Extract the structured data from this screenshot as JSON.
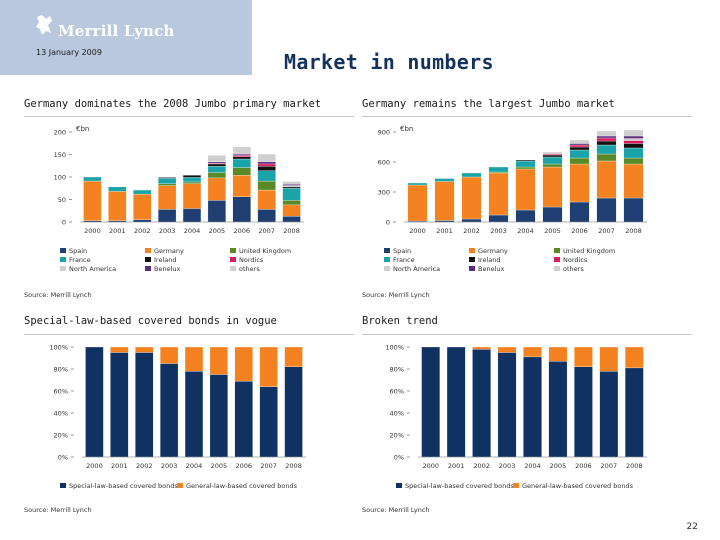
{
  "header": {
    "brand": "Merrill Lynch",
    "date": "13 January 2009",
    "title": "Market in numbers"
  },
  "page_number": "22",
  "colors": {
    "Spain": "#1f3f73",
    "France": "#1aa3a8",
    "North America": "#cfcfcf",
    "Germany": "#f58220",
    "Ireland": "#111111",
    "Benelux": "#5a2d81",
    "United Kingdom": "#5a8a28",
    "Nordics": "#d71b5b",
    "others": "#cfcfcf",
    "Special-law-based covered bonds": "#0f3263",
    "General-law-based covered bonds": "#f58220"
  },
  "panels": [
    {
      "title": "Germany dominates the 2008 Jumbo primary market",
      "source": "Source: Merrill Lynch",
      "unit": "€bn",
      "legend": [
        "Spain",
        "Germany",
        "United Kingdom",
        "France",
        "Ireland",
        "Nordics",
        "North America",
        "Benelux",
        "others"
      ]
    },
    {
      "title": "Germany remains the largest Jumbo market",
      "source": "Source: Merrill Lynch",
      "unit": "€bn",
      "legend": [
        "Spain",
        "Germany",
        "United Kingdom",
        "France",
        "Ireland",
        "Nordics",
        "North America",
        "Benelux",
        "others"
      ]
    },
    {
      "title": "Special-law-based covered bonds in vogue",
      "source": "Source: Merrill Lynch",
      "legend": [
        "Special-law-based covered bonds",
        "General-law-based covered bonds"
      ]
    },
    {
      "title": "Broken trend",
      "source": "Source: Merrill Lynch",
      "legend": [
        "Special-law-based covered bonds",
        "General-law-based covered bonds"
      ]
    }
  ],
  "chart_data": [
    {
      "type": "bar",
      "stacked": true,
      "title": "Germany dominates the 2008 Jumbo primary market",
      "ylabel": "€bn",
      "categories": [
        "2000",
        "2001",
        "2002",
        "2003",
        "2004",
        "2005",
        "2006",
        "2007",
        "2008"
      ],
      "ylim": [
        0,
        200
      ],
      "yticks": [
        0,
        50,
        100,
        150,
        200
      ],
      "series": [
        {
          "name": "Spain",
          "values": [
            3,
            3,
            5,
            28,
            30,
            48,
            56,
            28,
            13
          ]
        },
        {
          "name": "Germany",
          "values": [
            88,
            65,
            57,
            53,
            55,
            50,
            48,
            43,
            25
          ]
        },
        {
          "name": "United Kingdom",
          "values": [
            0,
            0,
            0,
            4,
            4,
            12,
            17,
            20,
            10
          ]
        },
        {
          "name": "France",
          "values": [
            9,
            10,
            9,
            12,
            10,
            14,
            19,
            23,
            27
          ]
        },
        {
          "name": "Ireland",
          "values": [
            0,
            0,
            0,
            2,
            5,
            5,
            5,
            10,
            3
          ]
        },
        {
          "name": "Nordics",
          "values": [
            0,
            0,
            0,
            0,
            0,
            2,
            3,
            5,
            0
          ]
        },
        {
          "name": "North America",
          "values": [
            0,
            0,
            0,
            0,
            0,
            0,
            0,
            0,
            3
          ]
        },
        {
          "name": "Benelux",
          "values": [
            0,
            0,
            0,
            0,
            0,
            3,
            3,
            5,
            3
          ]
        },
        {
          "name": "others",
          "values": [
            0,
            0,
            0,
            0,
            0,
            14,
            16,
            17,
            6
          ]
        }
      ]
    },
    {
      "type": "bar",
      "stacked": true,
      "title": "Germany remains the largest Jumbo market",
      "ylabel": "€bn",
      "categories": [
        "2000",
        "2001",
        "2002",
        "2003",
        "2004",
        "2005",
        "2006",
        "2007",
        "2008"
      ],
      "ylim": [
        0,
        900
      ],
      "yticks": [
        0,
        300,
        600,
        900
      ],
      "series": [
        {
          "name": "Spain",
          "values": [
            10,
            15,
            30,
            70,
            120,
            150,
            200,
            240,
            240
          ]
        },
        {
          "name": "Germany",
          "values": [
            360,
            390,
            420,
            420,
            410,
            400,
            380,
            370,
            340
          ]
        },
        {
          "name": "United Kingdom",
          "values": [
            0,
            0,
            0,
            10,
            20,
            30,
            60,
            70,
            60
          ]
        },
        {
          "name": "France",
          "values": [
            20,
            30,
            40,
            50,
            60,
            70,
            80,
            90,
            100
          ]
        },
        {
          "name": "Ireland",
          "values": [
            0,
            0,
            0,
            0,
            10,
            20,
            30,
            40,
            45
          ]
        },
        {
          "name": "Nordics",
          "values": [
            0,
            0,
            0,
            0,
            0,
            10,
            20,
            30,
            30
          ]
        },
        {
          "name": "North America",
          "values": [
            0,
            0,
            0,
            0,
            0,
            0,
            0,
            0,
            20
          ]
        },
        {
          "name": "Benelux",
          "values": [
            0,
            0,
            0,
            0,
            0,
            0,
            15,
            20,
            25
          ]
        },
        {
          "name": "others",
          "values": [
            0,
            0,
            0,
            0,
            0,
            20,
            35,
            50,
            60
          ]
        }
      ]
    },
    {
      "type": "bar",
      "stacked": true,
      "percent": true,
      "title": "Special-law-based covered bonds in vogue",
      "categories": [
        "2000",
        "2001",
        "2002",
        "2003",
        "2004",
        "2005",
        "2006",
        "2007",
        "2008"
      ],
      "ylim": [
        0,
        100
      ],
      "yticks": [
        0,
        20,
        40,
        60,
        80,
        100
      ],
      "ytick_suffix": "%",
      "series": [
        {
          "name": "Special-law-based covered bonds",
          "values": [
            100,
            95,
            95,
            85,
            78,
            75,
            69,
            64,
            82
          ]
        },
        {
          "name": "General-law-based covered bonds",
          "values": [
            0,
            5,
            5,
            15,
            22,
            25,
            31,
            36,
            18
          ]
        }
      ]
    },
    {
      "type": "bar",
      "stacked": true,
      "percent": true,
      "title": "Broken trend",
      "categories": [
        "2000",
        "2001",
        "2002",
        "2003",
        "2004",
        "2005",
        "2006",
        "2007",
        "2008"
      ],
      "ylim": [
        0,
        100
      ],
      "yticks": [
        0,
        20,
        40,
        60,
        80,
        100
      ],
      "ytick_suffix": "%",
      "series": [
        {
          "name": "Special-law-based covered bonds",
          "values": [
            100,
            100,
            98,
            95,
            91,
            87,
            82,
            78,
            81
          ]
        },
        {
          "name": "General-law-based covered bonds",
          "values": [
            0,
            0,
            2,
            5,
            9,
            13,
            18,
            22,
            19
          ]
        }
      ]
    }
  ]
}
